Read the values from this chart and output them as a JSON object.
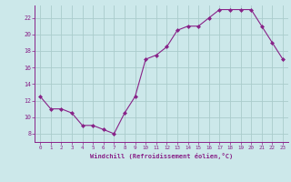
{
  "x": [
    0,
    1,
    2,
    3,
    4,
    5,
    6,
    7,
    8,
    9,
    10,
    11,
    12,
    13,
    14,
    15,
    16,
    17,
    18,
    19,
    20,
    21,
    22,
    23
  ],
  "y": [
    12.5,
    11.0,
    11.0,
    10.5,
    9.0,
    9.0,
    8.5,
    8.0,
    10.5,
    12.5,
    17.0,
    17.5,
    18.5,
    20.5,
    21.0,
    21.0,
    22.0,
    23.0,
    23.0,
    23.0,
    23.0,
    21.0,
    19.0,
    17.0
  ],
  "line_color": "#882288",
  "marker_color": "#882288",
  "bg_color": "#cce8ea",
  "grid_color": "#aacccc",
  "axis_color": "#882288",
  "tick_color": "#882288",
  "xlabel": "Windchill (Refroidissement éolien,°C)",
  "ylim": [
    7,
    23.5
  ],
  "xlim": [
    -0.5,
    23.5
  ],
  "yticks": [
    8,
    10,
    12,
    14,
    16,
    18,
    20,
    22
  ],
  "xticks": [
    0,
    1,
    2,
    3,
    4,
    5,
    6,
    7,
    8,
    9,
    10,
    11,
    12,
    13,
    14,
    15,
    16,
    17,
    18,
    19,
    20,
    21,
    22,
    23
  ]
}
